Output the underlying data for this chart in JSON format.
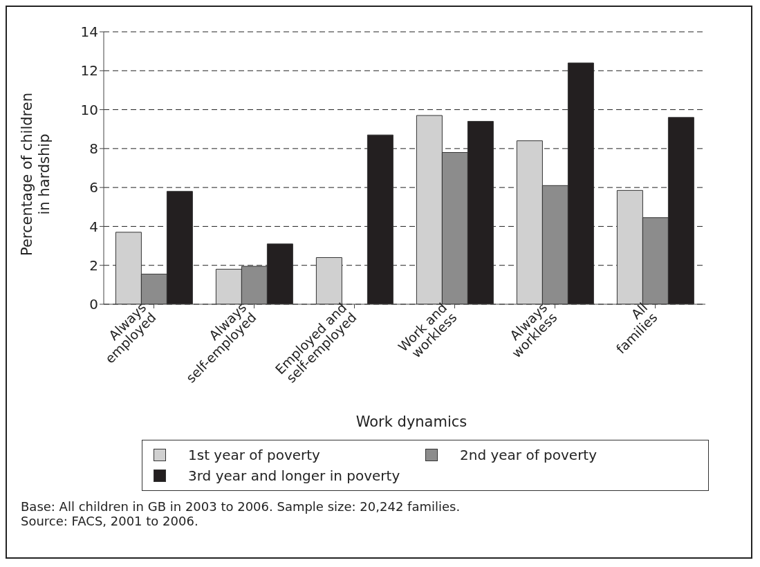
{
  "chart_data": {
    "type": "bar",
    "xlabel": "Work dynamics",
    "ylabel": "Percentage of children\nin hardship",
    "categories": [
      "Always\nemployed",
      "Always\nself-employed",
      "Employed and\nself-employed",
      "Work and\nworkless",
      "Always\nworkless",
      "All\nfamilies"
    ],
    "series": [
      {
        "name": "1st year of poverty",
        "color": "#d0d0d0",
        "values": [
          3.7,
          1.8,
          2.4,
          9.7,
          8.4,
          5.85
        ]
      },
      {
        "name": "2nd year of poverty",
        "color": "#8c8c8c",
        "values": [
          1.55,
          1.95,
          null,
          7.8,
          6.1,
          4.45
        ]
      },
      {
        "name": "3rd year and longer in poverty",
        "color": "#231f20",
        "values": [
          5.8,
          3.1,
          8.7,
          9.4,
          12.4,
          9.6
        ]
      }
    ],
    "ylim": [
      0,
      14
    ],
    "yticks": [
      0,
      2,
      4,
      6,
      8,
      10,
      12,
      14
    ],
    "grid": "y",
    "legend": "bottom",
    "annotations": [
      "Base: All children in GB in 2003 to 2006. Sample size: 20,242 families.",
      "Source: FACS, 2001 to 2006."
    ]
  }
}
